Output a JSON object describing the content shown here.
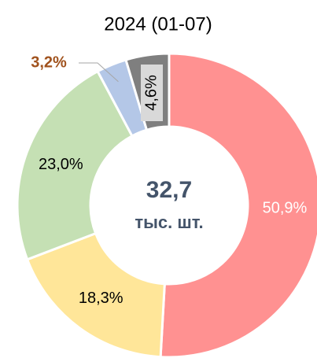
{
  "chart_data": {
    "type": "donut",
    "title": "2024 (01-07)",
    "center_value": "32,7",
    "center_unit": "тыс. шт.",
    "values": [
      50.9,
      18.3,
      23.0,
      3.2,
      4.6
    ],
    "value_labels": [
      "50,9%",
      "18,3%",
      "23,0%",
      "3,2%",
      "4,6%"
    ],
    "colors": [
      "#ff9191",
      "#ffe699",
      "#c5e0b4",
      "#b4c7e7",
      "#7f7f7f"
    ]
  }
}
